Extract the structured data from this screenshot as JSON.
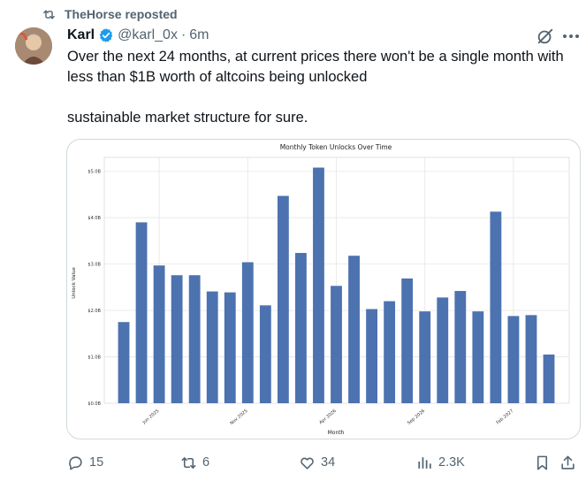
{
  "repost": {
    "label": "TheHorse reposted",
    "icon": "repost-icon"
  },
  "author": {
    "name": "Karl",
    "handle": "@karl_0x",
    "separator": "·",
    "time": "6m",
    "verified": true
  },
  "tweet": {
    "line1": "Over the next 24 months, at current prices there won't be a single month with less than $1B worth of altcoins being unlocked",
    "line2": "sustainable market structure for sure."
  },
  "actions": {
    "replies": "15",
    "reposts": "6",
    "likes": "34",
    "views": "2.3K"
  },
  "colors": {
    "bar": "#4c72b0",
    "muted": "#536471",
    "verified": "#1d9bf0"
  },
  "chart_data": {
    "type": "bar",
    "title": "Monthly Token Unlocks Over Time",
    "xlabel": "Month",
    "ylabel": "Unlock Value",
    "ylim": [
      0,
      5.3
    ],
    "yticks": [
      "$0.0B",
      "$1.0B",
      "$2.0B",
      "$3.0B",
      "$4.0B",
      "$5.0B"
    ],
    "xticks": [
      {
        "label": "Jun 2025",
        "index": 2
      },
      {
        "label": "Nov 2025",
        "index": 7
      },
      {
        "label": "Apr 2026",
        "index": 12
      },
      {
        "label": "Sep 2026",
        "index": 17
      },
      {
        "label": "Feb 2027",
        "index": 22
      }
    ],
    "values": [
      1.75,
      3.9,
      2.97,
      2.76,
      2.76,
      2.41,
      2.39,
      3.04,
      2.11,
      4.47,
      3.24,
      5.08,
      2.53,
      3.18,
      2.03,
      2.2,
      2.69,
      1.98,
      2.28,
      2.42,
      1.98,
      4.13,
      1.88,
      1.9,
      1.05
    ],
    "grid": true
  }
}
